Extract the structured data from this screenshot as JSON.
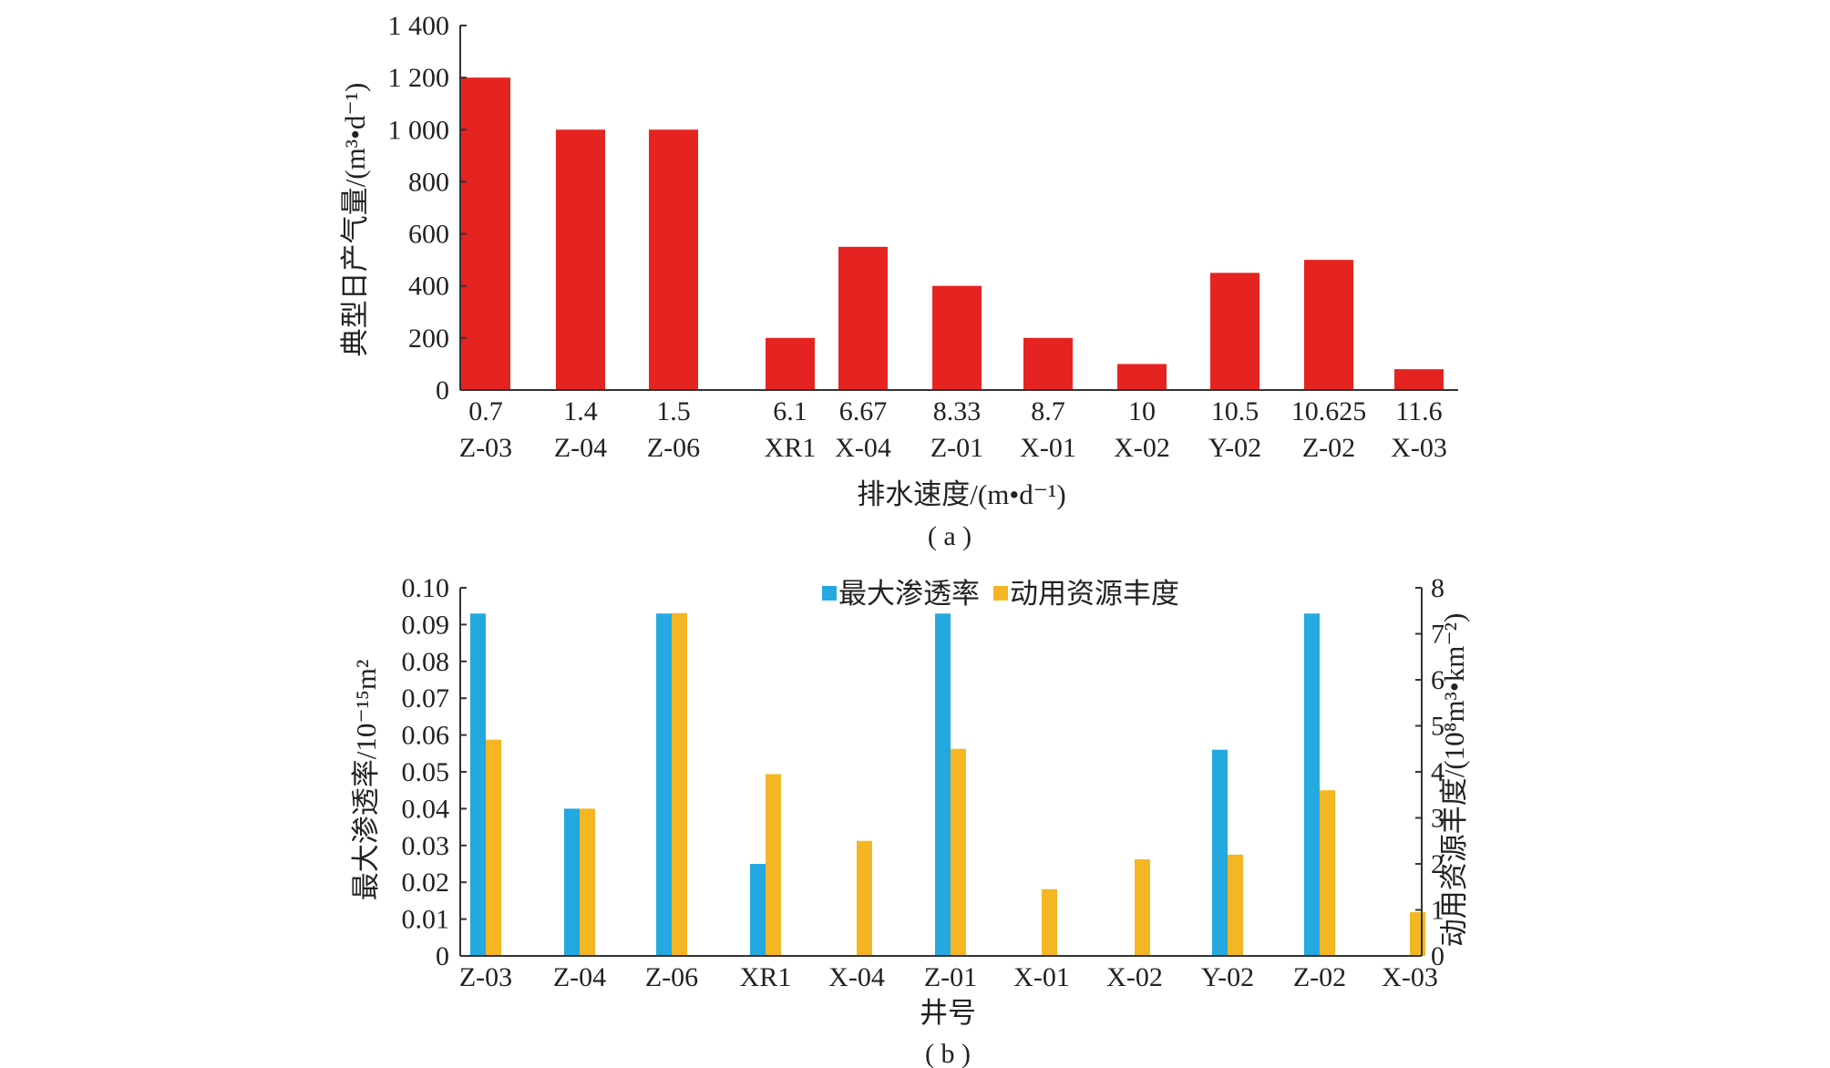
{
  "colors": {
    "panel_a_bar": "#e52421",
    "permeability": "#24a8e0",
    "resource_abundance": "#f5b623",
    "axis": "#333333"
  },
  "chart_data": [
    {
      "type": "bar",
      "panel_label": "( a )",
      "categories": [
        "Z-03",
        "Z-04",
        "Z-06",
        "XR1",
        "X-04",
        "Z-01",
        "X-01",
        "X-02",
        "Y-02",
        "Z-02",
        "X-03"
      ],
      "x_values": [
        "0.7",
        "1.4",
        "1.5",
        "6.1",
        "6.67",
        "8.33",
        "8.7",
        "10",
        "10.5",
        "10.625",
        "11.6"
      ],
      "values": [
        1200,
        1000,
        1000,
        200,
        550,
        400,
        200,
        100,
        450,
        500,
        80
      ],
      "xlabel": "排水速度/(m•d⁻¹)",
      "ylabel": "典型日产气量/(m³•d⁻¹)",
      "ylim": [
        0,
        1400
      ],
      "yticks": [
        "0",
        "200",
        "400",
        "600",
        "800",
        "1 000",
        "1 200",
        "1 400"
      ],
      "grid": false
    },
    {
      "type": "bar",
      "panel_label": "( b )",
      "categories": [
        "Z-03",
        "Z-04",
        "Z-06",
        "XR1",
        "X-04",
        "Z-01",
        "X-01",
        "X-02",
        "Y-02",
        "Z-02",
        "X-03"
      ],
      "series": [
        {
          "name": "最大渗透率",
          "axis": "left",
          "values": [
            0.093,
            0.04,
            0.093,
            0.025,
            0,
            0.093,
            0,
            0,
            0.056,
            0.093,
            0
          ]
        },
        {
          "name": "动用资源丰度",
          "axis": "right",
          "values": [
            4.7,
            3.2,
            7.45,
            3.95,
            2.5,
            4.5,
            1.45,
            2.1,
            2.2,
            3.6,
            0.95
          ]
        }
      ],
      "xlabel": "井号",
      "ylabel": "最大渗透率/10⁻¹⁵m²",
      "y2label": "动用资源丰度/(10⁸m³•km⁻²)",
      "ylim": [
        0,
        0.1
      ],
      "y2lim": [
        0,
        8
      ],
      "yticks": [
        "0",
        "0.01",
        "0.02",
        "0.03",
        "0.04",
        "0.05",
        "0.06",
        "0.07",
        "0.08",
        "0.09",
        "0.10"
      ],
      "y2ticks": [
        "0",
        "1",
        "2",
        "3",
        "4",
        "5",
        "6",
        "7",
        "8"
      ],
      "legend_position": "top-center",
      "grid": false
    }
  ]
}
